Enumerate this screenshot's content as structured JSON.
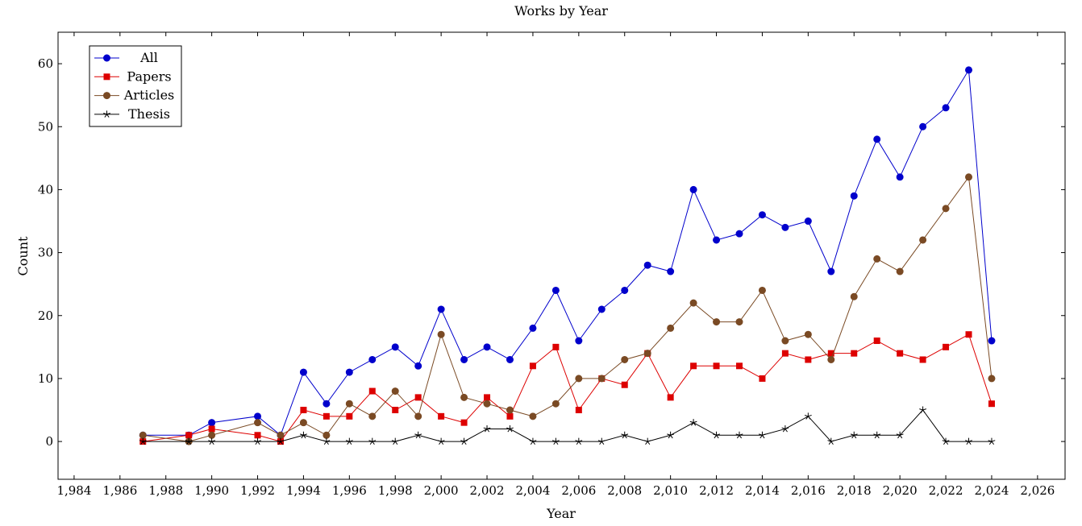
{
  "chart_data": {
    "type": "line",
    "title": "Works by Year",
    "xlabel": "Year",
    "ylabel": "Count",
    "xlim": [
      1983.3,
      2027.2
    ],
    "ylim": [
      -6,
      65
    ],
    "xticks": [
      1984,
      1986,
      1988,
      1990,
      1992,
      1994,
      1996,
      1998,
      2000,
      2002,
      2004,
      2006,
      2008,
      2010,
      2012,
      2014,
      2016,
      2018,
      2020,
      2022,
      2024,
      2026
    ],
    "xtick_labels": [
      "1,984",
      "1,986",
      "1,988",
      "1,990",
      "1,992",
      "1,994",
      "1,996",
      "1,998",
      "2,000",
      "2,002",
      "2,004",
      "2,006",
      "2,008",
      "2,010",
      "2,012",
      "2,014",
      "2,016",
      "2,018",
      "2,020",
      "2,022",
      "2,024",
      "2,026"
    ],
    "yticks": [
      0,
      10,
      20,
      30,
      40,
      50,
      60
    ],
    "ytick_labels": [
      "0",
      "10",
      "20",
      "30",
      "40",
      "50",
      "60"
    ],
    "grid": false,
    "legend_position": "top-left",
    "series": [
      {
        "name": "All",
        "color": "#0000cc",
        "marker": "circle",
        "x": [
          1987,
          1989,
          1990,
          1992,
          1993,
          1994,
          1995,
          1996,
          1997,
          1998,
          1999,
          2000,
          2001,
          2002,
          2003,
          2004,
          2005,
          2006,
          2007,
          2008,
          2009,
          2010,
          2011,
          2012,
          2013,
          2014,
          2015,
          2016,
          2017,
          2018,
          2019,
          2020,
          2021,
          2022,
          2023,
          2024
        ],
        "values": [
          1,
          1,
          3,
          4,
          1,
          11,
          6,
          11,
          13,
          15,
          12,
          21,
          13,
          15,
          13,
          18,
          24,
          16,
          21,
          24,
          28,
          27,
          40,
          32,
          33,
          36,
          34,
          35,
          27,
          39,
          48,
          42,
          50,
          53,
          59,
          16
        ]
      },
      {
        "name": "Papers",
        "color": "#dd0000",
        "marker": "square",
        "x": [
          1987,
          1989,
          1990,
          1992,
          1993,
          1994,
          1995,
          1996,
          1997,
          1998,
          1999,
          2000,
          2001,
          2002,
          2003,
          2004,
          2005,
          2006,
          2007,
          2008,
          2009,
          2010,
          2011,
          2012,
          2013,
          2014,
          2015,
          2016,
          2017,
          2018,
          2019,
          2020,
          2021,
          2022,
          2023,
          2024
        ],
        "values": [
          0,
          1,
          2,
          1,
          0,
          5,
          4,
          4,
          8,
          5,
          7,
          4,
          3,
          7,
          4,
          12,
          15,
          5,
          10,
          9,
          14,
          7,
          12,
          12,
          12,
          10,
          14,
          13,
          14,
          14,
          16,
          14,
          13,
          15,
          17,
          6
        ]
      },
      {
        "name": "Articles",
        "color": "#7a4a24",
        "marker": "circle",
        "x": [
          1987,
          1989,
          1990,
          1992,
          1993,
          1994,
          1995,
          1996,
          1997,
          1998,
          1999,
          2000,
          2001,
          2002,
          2003,
          2004,
          2005,
          2006,
          2007,
          2008,
          2009,
          2010,
          2011,
          2012,
          2013,
          2014,
          2015,
          2016,
          2017,
          2018,
          2019,
          2020,
          2021,
          2022,
          2023,
          2024
        ],
        "values": [
          1,
          0,
          1,
          3,
          1,
          3,
          1,
          6,
          4,
          8,
          4,
          17,
          7,
          6,
          5,
          4,
          6,
          10,
          10,
          13,
          14,
          18,
          22,
          19,
          19,
          24,
          16,
          17,
          13,
          23,
          29,
          27,
          32,
          37,
          42,
          10
        ]
      },
      {
        "name": "Thesis",
        "color": "#000000",
        "marker": "star",
        "x": [
          1987,
          1989,
          1990,
          1992,
          1993,
          1994,
          1995,
          1996,
          1997,
          1998,
          1999,
          2000,
          2001,
          2002,
          2003,
          2004,
          2005,
          2006,
          2007,
          2008,
          2009,
          2010,
          2011,
          2012,
          2013,
          2014,
          2015,
          2016,
          2017,
          2018,
          2019,
          2020,
          2021,
          2022,
          2023,
          2024
        ],
        "values": [
          0,
          0,
          0,
          0,
          0,
          1,
          0,
          0,
          0,
          0,
          1,
          0,
          0,
          2,
          2,
          0,
          0,
          0,
          0,
          1,
          0,
          1,
          3,
          1,
          1,
          1,
          2,
          4,
          0,
          1,
          1,
          1,
          5,
          0,
          0,
          0
        ]
      }
    ]
  }
}
